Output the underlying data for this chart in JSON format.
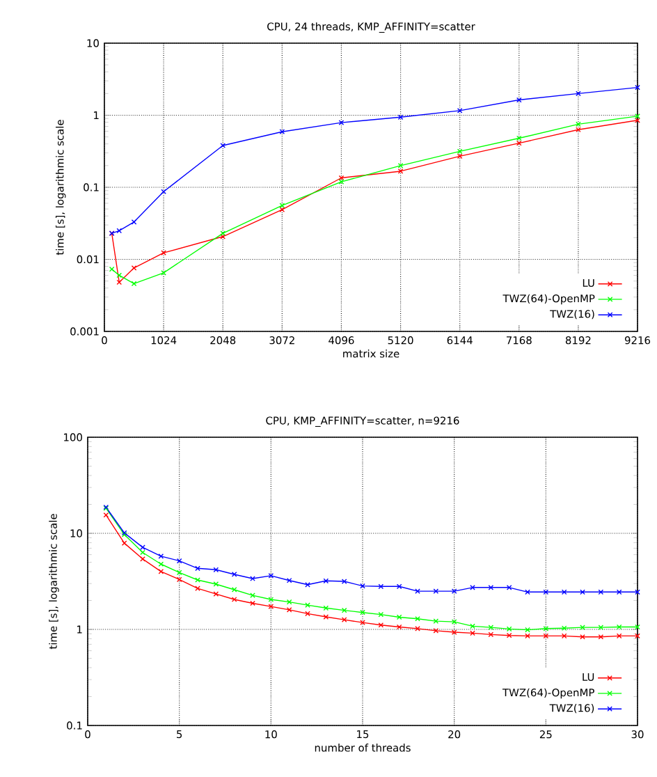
{
  "chart_data": [
    {
      "type": "line",
      "title": "CPU, 24 threads, KMP_AFFINITY=scatter",
      "xlabel": "matrix size",
      "ylabel": "time [s], logarithmic scale",
      "log": "y",
      "grid": true,
      "legend": "bottom right",
      "marker": "cross",
      "line_style": "solid",
      "x": [
        128,
        256,
        512,
        1024,
        2048,
        3072,
        4096,
        5120,
        6144,
        7168,
        8192,
        9216
      ],
      "xlim": [
        0,
        9216
      ],
      "xticks": [
        0,
        1024,
        2048,
        3072,
        4096,
        5120,
        6144,
        7168,
        8192,
        9216
      ],
      "ylim": [
        0.001,
        10
      ],
      "yticks": [
        0.001,
        0.01,
        0.1,
        1,
        10
      ],
      "series": [
        {
          "name": "LU",
          "color": "#ff0000",
          "values": [
            0.023,
            0.0048,
            0.0076,
            0.0123,
            0.0207,
            0.049,
            0.135,
            0.167,
            0.27,
            0.41,
            0.63,
            0.85
          ]
        },
        {
          "name": "TWZ(64)-OpenMP",
          "color": "#00ff00",
          "values": [
            0.0073,
            0.006,
            0.0046,
            0.0065,
            0.023,
            0.056,
            0.119,
            0.2,
            0.315,
            0.48,
            0.75,
            0.97
          ]
        },
        {
          "name": "TWZ(16)",
          "color": "#0000ff",
          "values": [
            0.023,
            0.025,
            0.033,
            0.087,
            0.38,
            0.59,
            0.79,
            0.94,
            1.16,
            1.63,
            2.0,
            2.43
          ]
        }
      ]
    },
    {
      "type": "line",
      "title": "CPU, KMP_AFFINITY=scatter, n=9216",
      "xlabel": "number of threads",
      "ylabel": "time [s], logarithmic scale",
      "log": "y",
      "grid": true,
      "legend": "bottom right",
      "marker": "cross",
      "line_style": "solid",
      "x": [
        1,
        2,
        3,
        4,
        5,
        6,
        7,
        8,
        9,
        10,
        11,
        12,
        13,
        14,
        15,
        16,
        17,
        18,
        19,
        20,
        21,
        22,
        23,
        24,
        25,
        26,
        27,
        28,
        29,
        30
      ],
      "xlim": [
        0,
        30
      ],
      "xticks": [
        0,
        5,
        10,
        15,
        20,
        25,
        30
      ],
      "ylim": [
        0.1,
        100
      ],
      "yticks": [
        0.1,
        1,
        10,
        100
      ],
      "series": [
        {
          "name": "LU",
          "color": "#ff0000",
          "values": [
            15.5,
            7.9,
            5.41,
            4.0,
            3.31,
            2.67,
            2.34,
            2.05,
            1.87,
            1.73,
            1.6,
            1.46,
            1.35,
            1.26,
            1.18,
            1.11,
            1.06,
            1.02,
            0.97,
            0.935,
            0.915,
            0.885,
            0.865,
            0.855,
            0.855,
            0.855,
            0.836,
            0.836,
            0.855,
            0.855
          ]
        },
        {
          "name": "TWZ(64)-OpenMP",
          "color": "#00ff00",
          "values": [
            18.3,
            9.7,
            6.32,
            4.78,
            3.91,
            3.27,
            2.96,
            2.59,
            2.26,
            2.05,
            1.93,
            1.79,
            1.67,
            1.58,
            1.5,
            1.43,
            1.34,
            1.29,
            1.22,
            1.2,
            1.08,
            1.05,
            1.01,
            0.99,
            1.02,
            1.03,
            1.05,
            1.05,
            1.06,
            1.06
          ]
        },
        {
          "name": "TWZ(16)",
          "color": "#0000ff",
          "values": [
            18.7,
            10.1,
            7.15,
            5.78,
            5.17,
            4.32,
            4.18,
            3.74,
            3.38,
            3.62,
            3.23,
            2.92,
            3.2,
            3.16,
            2.83,
            2.8,
            2.8,
            2.5,
            2.5,
            2.5,
            2.73,
            2.73,
            2.73,
            2.45,
            2.45,
            2.45,
            2.45,
            2.45,
            2.45,
            2.45
          ]
        }
      ]
    }
  ]
}
